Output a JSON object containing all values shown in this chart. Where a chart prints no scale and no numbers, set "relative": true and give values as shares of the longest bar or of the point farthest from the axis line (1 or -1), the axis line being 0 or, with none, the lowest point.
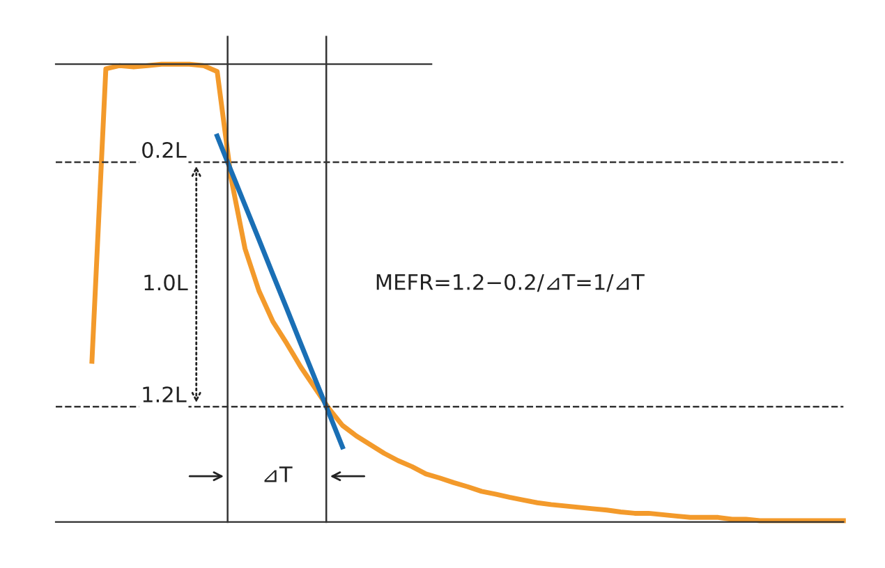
{
  "chart_data": {
    "type": "line",
    "relative": true,
    "categories": [
      null,
      null,
      null,
      null,
      null,
      null,
      null,
      null,
      null,
      null,
      null,
      null,
      null,
      null,
      null,
      null,
      null,
      null,
      null,
      null,
      null,
      null,
      null,
      null,
      null,
      null,
      null,
      null,
      null,
      null,
      null,
      null,
      null,
      null,
      null,
      null,
      null,
      null,
      null,
      null,
      null,
      null,
      null,
      null,
      null,
      null,
      null,
      null,
      null,
      null,
      null,
      null,
      null,
      null,
      null
    ],
    "series": [
      {
        "color": "#f39a2b",
        "values": [
          0.351,
          0.99,
          0.997,
          0.994,
          0.997,
          1.0,
          1.0,
          1.0,
          0.997,
          0.984,
          0.751,
          0.597,
          0.505,
          0.438,
          0.39,
          0.339,
          0.294,
          0.249,
          0.211,
          0.188,
          0.169,
          0.15,
          0.134,
          0.121,
          0.105,
          0.096,
          0.086,
          0.077,
          0.067,
          0.061,
          0.054,
          0.048,
          0.042,
          0.038,
          0.035,
          0.032,
          0.029,
          0.026,
          0.022,
          0.019,
          0.019,
          0.016,
          0.013,
          0.01,
          0.01,
          0.01,
          0.006,
          0.006,
          0.003,
          0.003,
          0.003,
          0.003,
          0.003,
          0.003,
          0.003
        ]
      },
      {
        "color": "#1a6fb5",
        "values": [
          null,
          null,
          null,
          null,
          null,
          null,
          null,
          null,
          null,
          0.843,
          0.767,
          0.692,
          0.617,
          0.541,
          0.466,
          0.39,
          0.315,
          0.24,
          0.164,
          null,
          null,
          null,
          null,
          null,
          null,
          null,
          null,
          null,
          null,
          null,
          null,
          null,
          null,
          null,
          null,
          null,
          null,
          null,
          null,
          null,
          null,
          null,
          null,
          null,
          null,
          null,
          null,
          null,
          null,
          null,
          null,
          null,
          null,
          null,
          null
        ]
      }
    ],
    "ref_lines": [
      {
        "axis": "y",
        "value": 0.786,
        "label": "0.2L",
        "color": "#333333",
        "line_style": "dashed"
      },
      {
        "axis": "y",
        "value": 0.252,
        "label": "1.2L",
        "color": "#333333",
        "line_style": "dashed"
      }
    ],
    "annotations": [
      "1.0L",
      "⊿T",
      "MEFR=1.2−0.2/⊿T=1/⊿T"
    ],
    "line_style": "solid"
  }
}
